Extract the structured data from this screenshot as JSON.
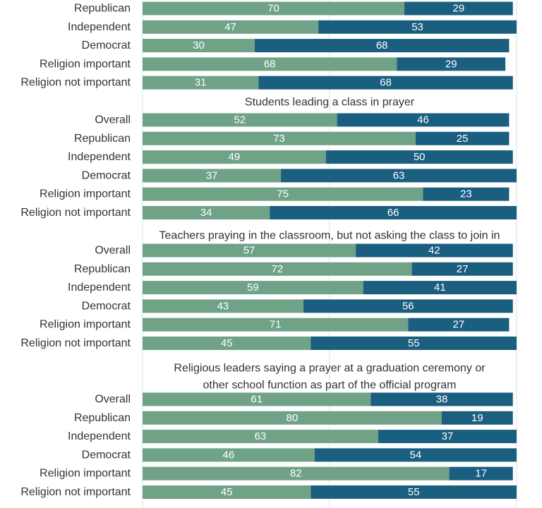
{
  "chart_data": {
    "type": "bar",
    "orientation": "horizontal",
    "stacked": true,
    "xlim": [
      0,
      100
    ],
    "grid": true,
    "colors": {
      "first": "#6fa287",
      "second": "#1a5e80"
    },
    "groups": [
      {
        "title": "",
        "rows": [
          {
            "label": "Republican",
            "values": [
              70,
              29
            ]
          },
          {
            "label": "Independent",
            "values": [
              47,
              53
            ]
          },
          {
            "label": "Democrat",
            "values": [
              30,
              68
            ]
          },
          {
            "label": "Religion important",
            "values": [
              68,
              29
            ]
          },
          {
            "label": "Religion not important",
            "values": [
              31,
              68
            ]
          }
        ]
      },
      {
        "title": "Students leading a class in prayer",
        "rows": [
          {
            "label": "Overall",
            "values": [
              52,
              46
            ]
          },
          {
            "label": "Republican",
            "values": [
              73,
              25
            ]
          },
          {
            "label": "Independent",
            "values": [
              49,
              50
            ]
          },
          {
            "label": "Democrat",
            "values": [
              37,
              63
            ]
          },
          {
            "label": "Religion important",
            "values": [
              75,
              23
            ]
          },
          {
            "label": "Religion not important",
            "values": [
              34,
              66
            ]
          }
        ]
      },
      {
        "title": "Teachers praying in the classroom, but not asking the class to join in",
        "rows": [
          {
            "label": "Overall",
            "values": [
              57,
              42
            ]
          },
          {
            "label": "Republican",
            "values": [
              72,
              27
            ]
          },
          {
            "label": "Independent",
            "values": [
              59,
              41
            ]
          },
          {
            "label": "Democrat",
            "values": [
              43,
              56
            ]
          },
          {
            "label": "Religion important",
            "values": [
              71,
              27
            ]
          },
          {
            "label": "Religion not important",
            "values": [
              45,
              55
            ]
          }
        ]
      },
      {
        "title": "Religious leaders saying a prayer at a graduation ceremony or other school function as part of the official program",
        "title_lines": [
          "Religious leaders saying a prayer at a graduation ceremony or",
          "other school function as part of the official program"
        ],
        "rows": [
          {
            "label": "Overall",
            "values": [
              61,
              38
            ]
          },
          {
            "label": "Republican",
            "values": [
              80,
              19
            ]
          },
          {
            "label": "Independent",
            "values": [
              63,
              37
            ]
          },
          {
            "label": "Democrat",
            "values": [
              46,
              54
            ]
          },
          {
            "label": "Religion important",
            "values": [
              82,
              17
            ]
          },
          {
            "label": "Religion not important",
            "values": [
              45,
              55
            ]
          }
        ]
      }
    ]
  }
}
